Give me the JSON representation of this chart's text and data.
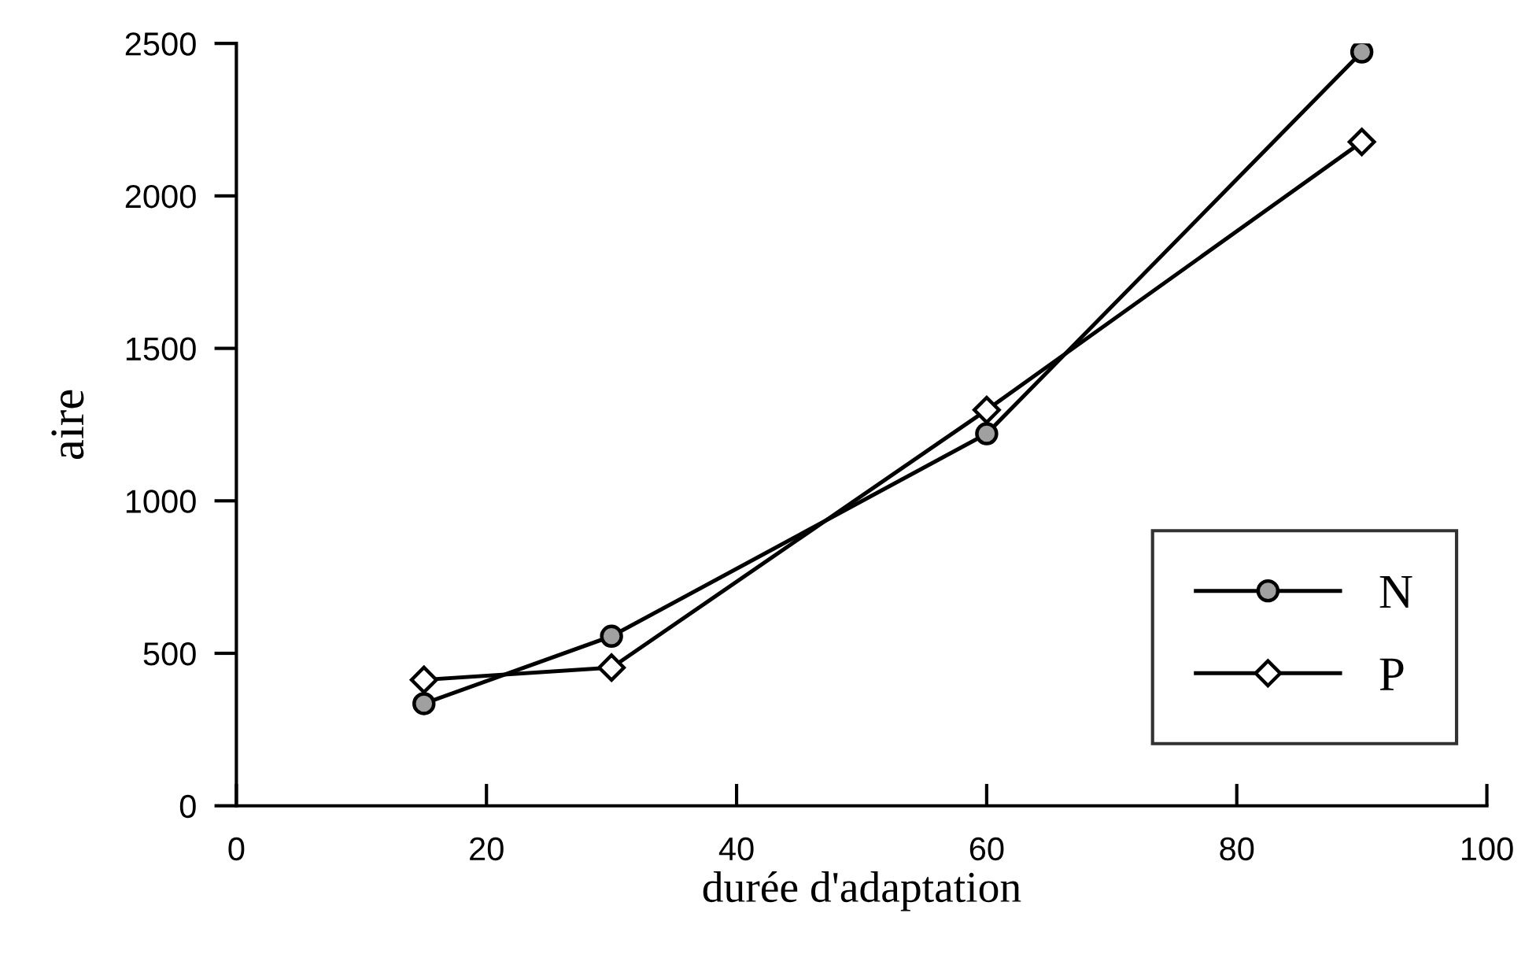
{
  "chart_data": {
    "type": "line",
    "xlabel": "durée d'adaptation",
    "ylabel": "aire",
    "x": [
      15,
      30,
      60,
      90
    ],
    "series": [
      {
        "name": "N",
        "color": "#000000",
        "marker": "circle",
        "values": [
          335,
          556,
          1220,
          2472
        ]
      },
      {
        "name": "P",
        "color": "#000000",
        "marker": "diamond",
        "values": [
          413,
          453,
          1298,
          2177
        ]
      }
    ],
    "xlim": [
      0,
      100
    ],
    "xticks": [
      0,
      20,
      40,
      60,
      80,
      100
    ],
    "ylim": [
      0,
      2500
    ],
    "yticks": [
      0,
      500,
      1000,
      1500,
      2000,
      2500
    ],
    "grid": false,
    "legend": "bottom right"
  }
}
